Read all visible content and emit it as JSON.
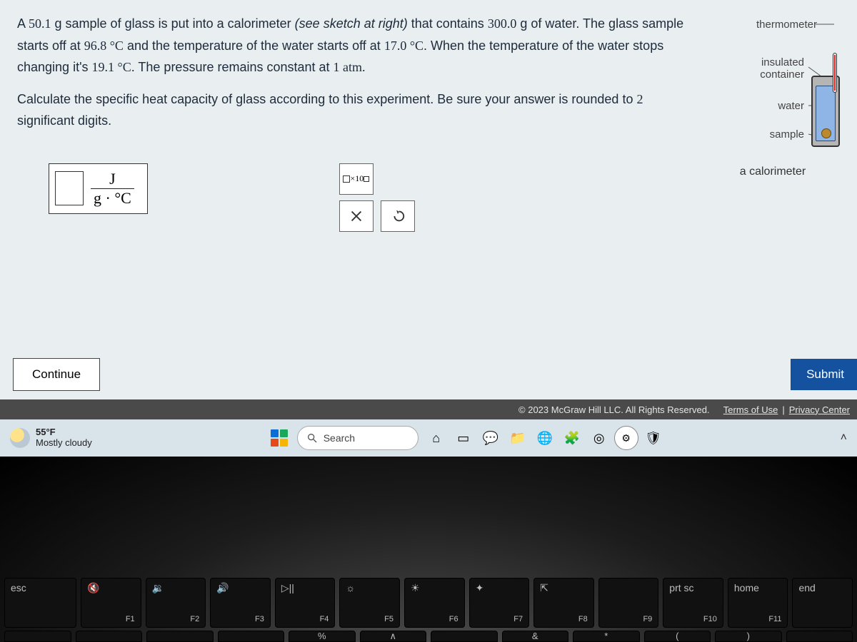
{
  "problem": {
    "sentence1_a": "A ",
    "mass_glass": "50.1",
    "sentence1_b": " g sample of glass is put into a calorimeter ",
    "paren": "(see sketch at right)",
    "sentence1_c": " that contains ",
    "mass_water": "300.0",
    "sentence1_d": " g of water. The glass sample starts off at ",
    "temp_glass": "96.8",
    "deg": " °C",
    "sentence1_e": " and the temperature of the water starts off at ",
    "temp_water": "17.0",
    "sentence1_f": ". When the temperature of the water stops changing it's ",
    "temp_final": "19.1",
    "sentence1_g": ". The pressure remains constant at ",
    "pressure": "1",
    "atm": " atm.",
    "sentence2_a": "Calculate the specific heat capacity of glass according to this experiment. Be sure your answer is rounded to ",
    "sigfigs": "2",
    "sentence2_b": " significant digits."
  },
  "diagram": {
    "thermometer": "thermometer",
    "insulated": "insulated\ncontainer",
    "water": "water",
    "sample": "sample",
    "caption": "a calorimeter"
  },
  "answer": {
    "unit_top": "J",
    "unit_bot": "g · °C",
    "value": ""
  },
  "tools": {
    "exp_label": "×10",
    "clear": "×",
    "reset": "↺"
  },
  "buttons": {
    "continue": "Continue",
    "submit": "Submit"
  },
  "footer": {
    "copyright": "© 2023 McGraw Hill LLC. All Rights Reserved.",
    "terms": "Terms of Use",
    "privacy": "Privacy Center",
    "sep": " | "
  },
  "taskbar": {
    "temp": "55°F",
    "cond": "Mostly cloudy",
    "search": "Search",
    "icons": [
      "⌂",
      "▭",
      "💬",
      "📁",
      "🌐",
      "🧩",
      "◎",
      "⚙",
      "🛡"
    ]
  },
  "keys": {
    "row": [
      {
        "tl": "esc",
        "br": ""
      },
      {
        "tl": "🔇",
        "br": "F1"
      },
      {
        "tl": "🔉",
        "br": "F2"
      },
      {
        "tl": "🔊",
        "br": "F3"
      },
      {
        "tl": "▷||",
        "br": "F4"
      },
      {
        "tl": "☼",
        "br": "F5"
      },
      {
        "tl": "☀",
        "br": "F6"
      },
      {
        "tl": "✦",
        "br": "F7"
      },
      {
        "tl": "⇱",
        "br": "F8"
      },
      {
        "tl": "",
        "br": "F9"
      },
      {
        "tl": "prt sc",
        "br": "F10"
      },
      {
        "tl": "home",
        "br": "F11"
      },
      {
        "tl": "end",
        "br": ""
      }
    ],
    "row2": [
      "",
      "",
      "",
      "",
      "%",
      "∧",
      "",
      "&",
      "*",
      "(",
      ")",
      ""
    ]
  },
  "colors": {
    "panel_bg": "#e9eef1",
    "text": "#1d2b3a",
    "footer_bg": "#4a4a4a",
    "taskbar_bg": "#d9e3ea",
    "submit_bg": "#14519f"
  }
}
